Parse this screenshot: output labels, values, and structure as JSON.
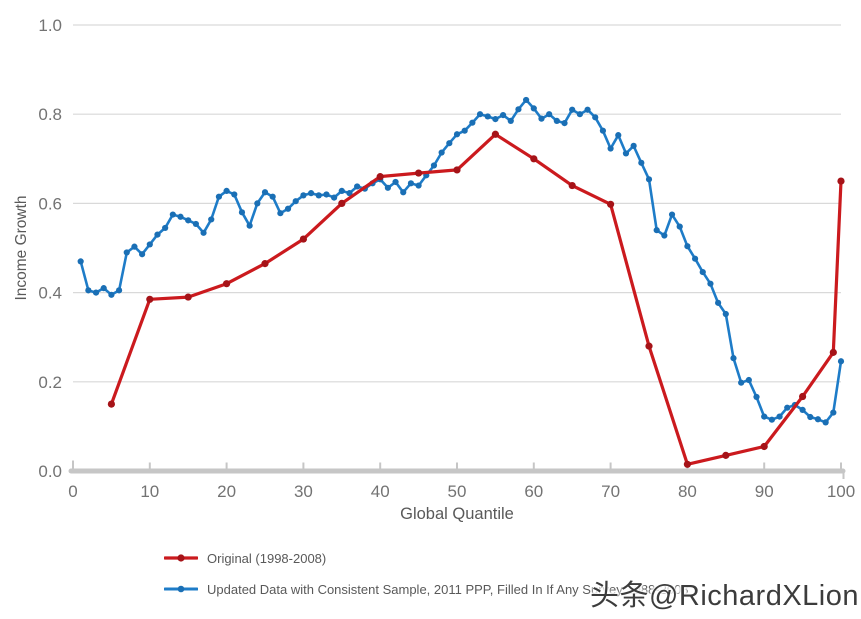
{
  "watermark": "头条@RichardXLion",
  "chart_data": {
    "type": "line",
    "title": "",
    "xlabel": "Global Quantile",
    "ylabel": "Income Growth",
    "xlim": [
      0,
      100
    ],
    "ylim": [
      0,
      1
    ],
    "x_ticks": [
      0,
      10,
      20,
      30,
      40,
      50,
      60,
      70,
      80,
      90,
      100
    ],
    "y_ticks": [
      0.0,
      0.2,
      0.4,
      0.6,
      0.8,
      1.0
    ],
    "grid": "horizontal",
    "legend_position": "bottom-left",
    "series": [
      {
        "name": "Original (1998-2008)",
        "color": "#cb1a1e",
        "marker_color": "#a61318",
        "x": [
          5,
          10,
          15,
          20,
          25,
          30,
          35,
          40,
          45,
          50,
          55,
          60,
          65,
          70,
          75,
          80,
          85,
          90,
          95,
          99,
          100
        ],
        "y": [
          0.15,
          0.385,
          0.39,
          0.42,
          0.465,
          0.52,
          0.6,
          0.66,
          0.668,
          0.675,
          0.755,
          0.7,
          0.64,
          0.598,
          0.28,
          0.015,
          0.035,
          0.055,
          0.167,
          0.266,
          0.65
        ]
      },
      {
        "name": "Updated Data with Consistent Sample, 2011 PPP, Filled In If Any Survey 1988-2008",
        "color": "#1e7cc8",
        "marker_color": "#1a6fb5",
        "x": [
          1,
          2,
          3,
          4,
          5,
          6,
          7,
          8,
          9,
          10,
          11,
          12,
          13,
          14,
          15,
          16,
          17,
          18,
          19,
          20,
          21,
          22,
          23,
          24,
          25,
          26,
          27,
          28,
          29,
          30,
          31,
          32,
          33,
          34,
          35,
          36,
          37,
          38,
          39,
          40,
          41,
          42,
          43,
          44,
          45,
          46,
          47,
          48,
          49,
          50,
          51,
          52,
          53,
          54,
          55,
          56,
          57,
          58,
          59,
          60,
          61,
          62,
          63,
          64,
          65,
          66,
          67,
          68,
          69,
          70,
          71,
          72,
          73,
          74,
          75,
          76,
          77,
          78,
          79,
          80,
          81,
          82,
          83,
          84,
          85,
          86,
          87,
          88,
          89,
          90,
          91,
          92,
          93,
          94,
          95,
          96,
          97,
          98,
          99,
          100
        ],
        "y": [
          0.47,
          0.405,
          0.4,
          0.41,
          0.395,
          0.405,
          0.49,
          0.503,
          0.486,
          0.508,
          0.53,
          0.545,
          0.575,
          0.57,
          0.562,
          0.554,
          0.534,
          0.564,
          0.615,
          0.628,
          0.62,
          0.58,
          0.55,
          0.6,
          0.625,
          0.615,
          0.578,
          0.588,
          0.605,
          0.618,
          0.623,
          0.618,
          0.62,
          0.613,
          0.628,
          0.623,
          0.638,
          0.633,
          0.645,
          0.654,
          0.635,
          0.648,
          0.625,
          0.645,
          0.64,
          0.663,
          0.685,
          0.714,
          0.735,
          0.755,
          0.763,
          0.781,
          0.8,
          0.795,
          0.789,
          0.798,
          0.785,
          0.811,
          0.832,
          0.813,
          0.79,
          0.8,
          0.785,
          0.78,
          0.81,
          0.8,
          0.81,
          0.793,
          0.763,
          0.723,
          0.753,
          0.712,
          0.729,
          0.691,
          0.654,
          0.54,
          0.528,
          0.575,
          0.548,
          0.504,
          0.476,
          0.446,
          0.42,
          0.377,
          0.352,
          0.253,
          0.198,
          0.204,
          0.166,
          0.122,
          0.115,
          0.122,
          0.142,
          0.148,
          0.137,
          0.121,
          0.116,
          0.109,
          0.131,
          0.246
        ]
      }
    ],
    "style": {
      "gridline_color": "#d9d9d9",
      "axis_color": "#c6c6c6",
      "tick_label_color": "#737373",
      "axis_title_color": "#595959"
    }
  }
}
